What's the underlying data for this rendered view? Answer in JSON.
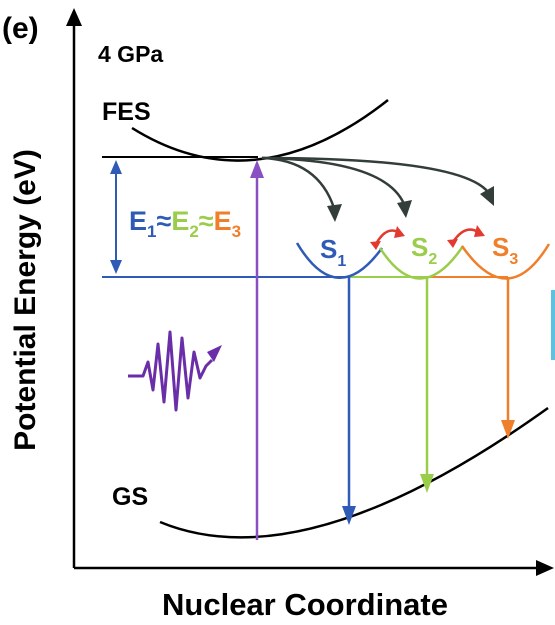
{
  "panel_label": "(e)",
  "pressure_label": "4 GPa",
  "y_axis_label": "Potential Energy (eV)",
  "x_axis_label": "Nuclear Coordinate",
  "fes_label": "FES",
  "gs_label": "GS",
  "energy_relation": {
    "e1": "E",
    "e1_sub": "1",
    "approx1": "≈",
    "e2": "E",
    "e2_sub": "2",
    "approx2": "≈",
    "e3": "E",
    "e3_sub": "3"
  },
  "states": [
    {
      "name": "S",
      "sub": "1",
      "color": "#2f5bb7"
    },
    {
      "name": "S",
      "sub": "2",
      "color": "#9acd4a"
    },
    {
      "name": "S",
      "sub": "3",
      "color": "#f07f2b"
    }
  ],
  "colors": {
    "axis": "#000000",
    "excitation": "#8a4fc1",
    "s1": "#2f5bb7",
    "s2": "#9acd4a",
    "s3": "#f07f2b",
    "transfer_arrows": "#333d3a",
    "exchange_arrows": "#e23a2f"
  },
  "icons": {
    "photon": "wavy-light-pulse-icon"
  }
}
